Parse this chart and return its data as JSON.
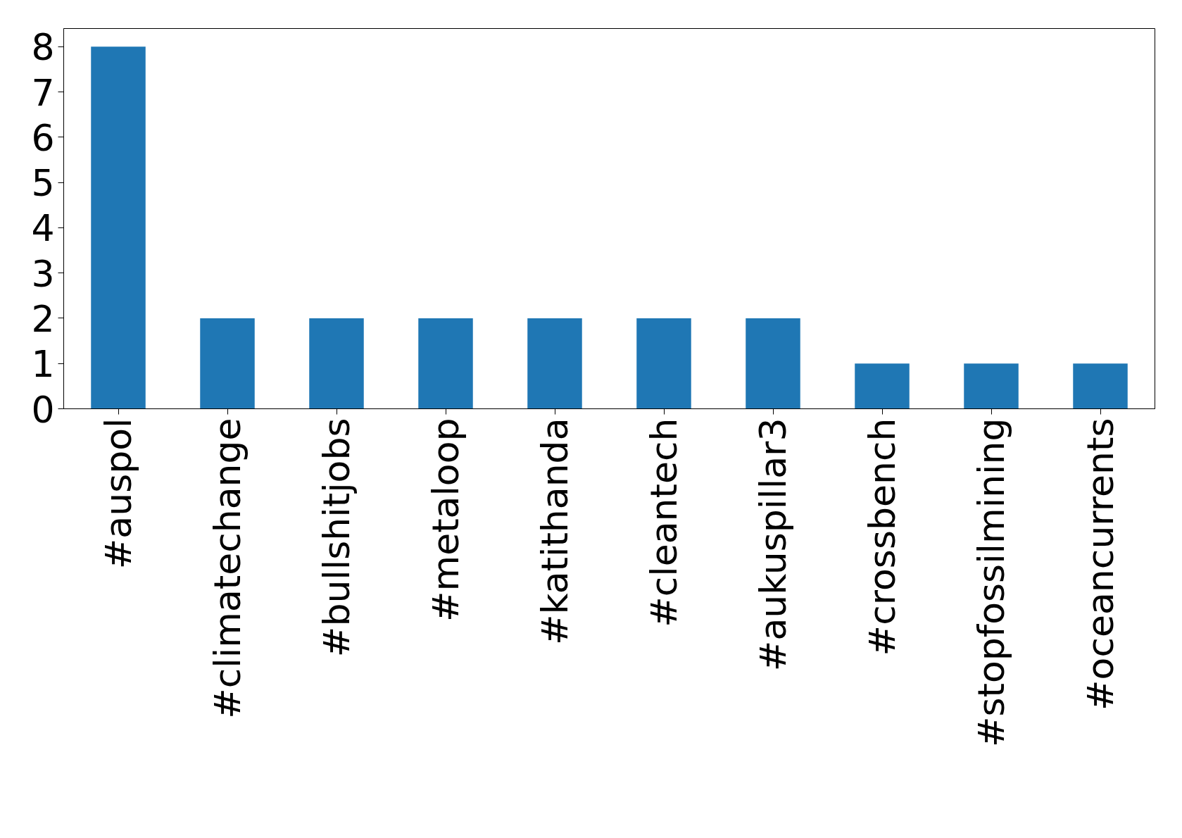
{
  "chart_data": {
    "type": "bar",
    "categories": [
      "#auspol",
      "#climatechange",
      "#bullshitjobs",
      "#metaloop",
      "#katithanda",
      "#cleantech",
      "#aukuspillar3",
      "#crossbench",
      "#stopfossilmining",
      "#oceancurrents"
    ],
    "values": [
      8,
      2,
      2,
      2,
      2,
      2,
      2,
      1,
      1,
      1
    ],
    "color": "#1f77b4",
    "ylim": [
      0,
      8.4
    ],
    "yticks": [
      0,
      1,
      2,
      3,
      4,
      5,
      6,
      7,
      8
    ],
    "grid": false
  }
}
